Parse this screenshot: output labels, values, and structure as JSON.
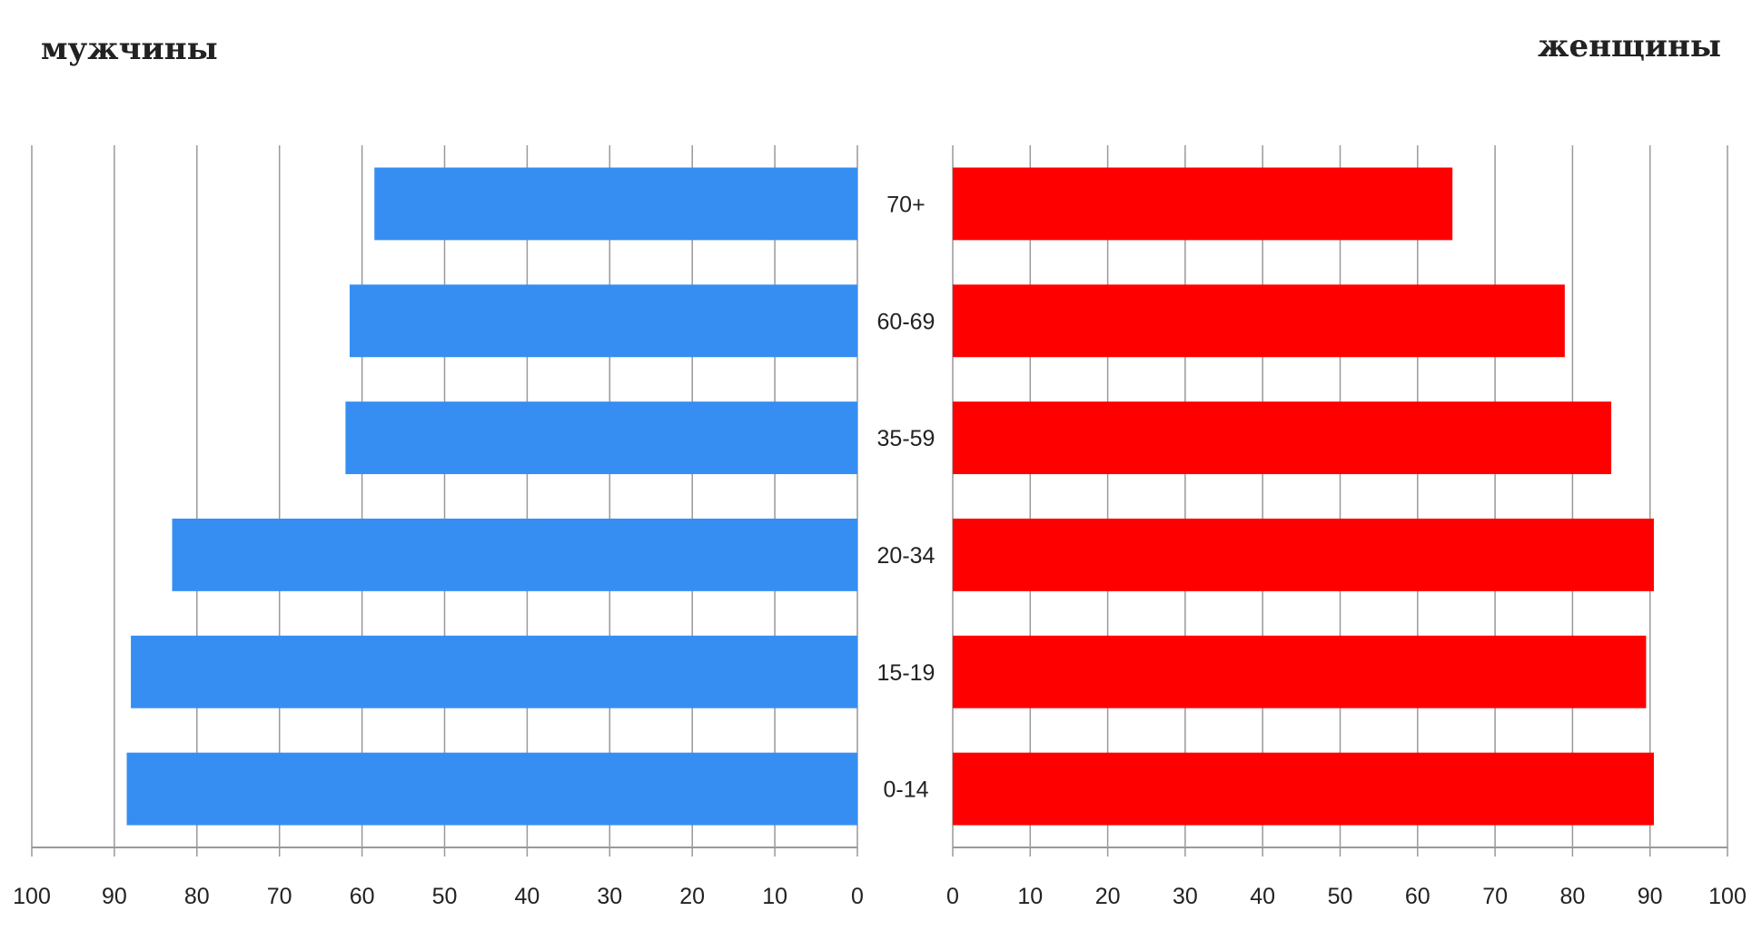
{
  "titles": {
    "left": "мужчины",
    "right": "женщины"
  },
  "chart_data": {
    "type": "bar",
    "orientation": "horizontal-mirrored",
    "categories": [
      "70+",
      "60-69",
      "35-59",
      "20-34",
      "15-19",
      "0-14"
    ],
    "series": [
      {
        "name": "мужчины",
        "side": "left",
        "color": "#368ef2",
        "values": [
          58.5,
          61.5,
          62,
          83,
          88,
          88.5
        ]
      },
      {
        "name": "женщины",
        "side": "right",
        "color": "#ff0000",
        "values": [
          64.5,
          79,
          85,
          90.5,
          89.5,
          90.5
        ]
      }
    ],
    "xlim": [
      0,
      100
    ],
    "ticks_left": [
      "100",
      "90",
      "80",
      "70",
      "60",
      "50",
      "40",
      "30",
      "20",
      "10",
      "0"
    ],
    "ticks_right": [
      "0",
      "10",
      "20",
      "30",
      "40",
      "50",
      "60",
      "70",
      "80",
      "90",
      "100"
    ],
    "grid": true,
    "gridline_color": "#999999"
  }
}
